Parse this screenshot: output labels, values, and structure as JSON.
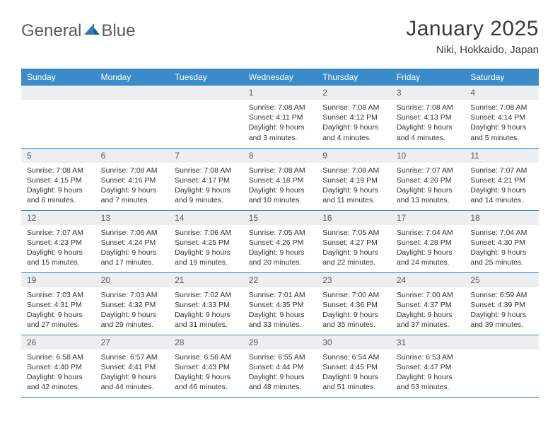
{
  "brand": {
    "word1": "General",
    "word2": "Blue"
  },
  "title": "January 2025",
  "location": "Niki, Hokkaido, Japan",
  "colors": {
    "header_bg": "#3b8bc9",
    "daynum_bg": "#eceef0",
    "text": "#333333",
    "brand_gray": "#5a5a5a",
    "brand_blue": "#2a7ab8"
  },
  "days_of_week": [
    "Sunday",
    "Monday",
    "Tuesday",
    "Wednesday",
    "Thursday",
    "Friday",
    "Saturday"
  ],
  "weeks": [
    [
      null,
      null,
      null,
      {
        "n": "1",
        "sr": "7:08 AM",
        "ss": "4:11 PM",
        "dl": "9 hours and 3 minutes."
      },
      {
        "n": "2",
        "sr": "7:08 AM",
        "ss": "4:12 PM",
        "dl": "9 hours and 4 minutes."
      },
      {
        "n": "3",
        "sr": "7:08 AM",
        "ss": "4:13 PM",
        "dl": "9 hours and 4 minutes."
      },
      {
        "n": "4",
        "sr": "7:08 AM",
        "ss": "4:14 PM",
        "dl": "9 hours and 5 minutes."
      }
    ],
    [
      {
        "n": "5",
        "sr": "7:08 AM",
        "ss": "4:15 PM",
        "dl": "9 hours and 6 minutes."
      },
      {
        "n": "6",
        "sr": "7:08 AM",
        "ss": "4:16 PM",
        "dl": "9 hours and 7 minutes."
      },
      {
        "n": "7",
        "sr": "7:08 AM",
        "ss": "4:17 PM",
        "dl": "9 hours and 9 minutes."
      },
      {
        "n": "8",
        "sr": "7:08 AM",
        "ss": "4:18 PM",
        "dl": "9 hours and 10 minutes."
      },
      {
        "n": "9",
        "sr": "7:08 AM",
        "ss": "4:19 PM",
        "dl": "9 hours and 11 minutes."
      },
      {
        "n": "10",
        "sr": "7:07 AM",
        "ss": "4:20 PM",
        "dl": "9 hours and 13 minutes."
      },
      {
        "n": "11",
        "sr": "7:07 AM",
        "ss": "4:21 PM",
        "dl": "9 hours and 14 minutes."
      }
    ],
    [
      {
        "n": "12",
        "sr": "7:07 AM",
        "ss": "4:23 PM",
        "dl": "9 hours and 15 minutes."
      },
      {
        "n": "13",
        "sr": "7:06 AM",
        "ss": "4:24 PM",
        "dl": "9 hours and 17 minutes."
      },
      {
        "n": "14",
        "sr": "7:06 AM",
        "ss": "4:25 PM",
        "dl": "9 hours and 19 minutes."
      },
      {
        "n": "15",
        "sr": "7:05 AM",
        "ss": "4:26 PM",
        "dl": "9 hours and 20 minutes."
      },
      {
        "n": "16",
        "sr": "7:05 AM",
        "ss": "4:27 PM",
        "dl": "9 hours and 22 minutes."
      },
      {
        "n": "17",
        "sr": "7:04 AM",
        "ss": "4:28 PM",
        "dl": "9 hours and 24 minutes."
      },
      {
        "n": "18",
        "sr": "7:04 AM",
        "ss": "4:30 PM",
        "dl": "9 hours and 25 minutes."
      }
    ],
    [
      {
        "n": "19",
        "sr": "7:03 AM",
        "ss": "4:31 PM",
        "dl": "9 hours and 27 minutes."
      },
      {
        "n": "20",
        "sr": "7:03 AM",
        "ss": "4:32 PM",
        "dl": "9 hours and 29 minutes."
      },
      {
        "n": "21",
        "sr": "7:02 AM",
        "ss": "4:33 PM",
        "dl": "9 hours and 31 minutes."
      },
      {
        "n": "22",
        "sr": "7:01 AM",
        "ss": "4:35 PM",
        "dl": "9 hours and 33 minutes."
      },
      {
        "n": "23",
        "sr": "7:00 AM",
        "ss": "4:36 PM",
        "dl": "9 hours and 35 minutes."
      },
      {
        "n": "24",
        "sr": "7:00 AM",
        "ss": "4:37 PM",
        "dl": "9 hours and 37 minutes."
      },
      {
        "n": "25",
        "sr": "6:59 AM",
        "ss": "4:39 PM",
        "dl": "9 hours and 39 minutes."
      }
    ],
    [
      {
        "n": "26",
        "sr": "6:58 AM",
        "ss": "4:40 PM",
        "dl": "9 hours and 42 minutes."
      },
      {
        "n": "27",
        "sr": "6:57 AM",
        "ss": "4:41 PM",
        "dl": "9 hours and 44 minutes."
      },
      {
        "n": "28",
        "sr": "6:56 AM",
        "ss": "4:43 PM",
        "dl": "9 hours and 46 minutes."
      },
      {
        "n": "29",
        "sr": "6:55 AM",
        "ss": "4:44 PM",
        "dl": "9 hours and 48 minutes."
      },
      {
        "n": "30",
        "sr": "6:54 AM",
        "ss": "4:45 PM",
        "dl": "9 hours and 51 minutes."
      },
      {
        "n": "31",
        "sr": "6:53 AM",
        "ss": "4:47 PM",
        "dl": "9 hours and 53 minutes."
      },
      null
    ]
  ],
  "labels": {
    "sunrise": "Sunrise:",
    "sunset": "Sunset:",
    "daylight": "Daylight:"
  }
}
